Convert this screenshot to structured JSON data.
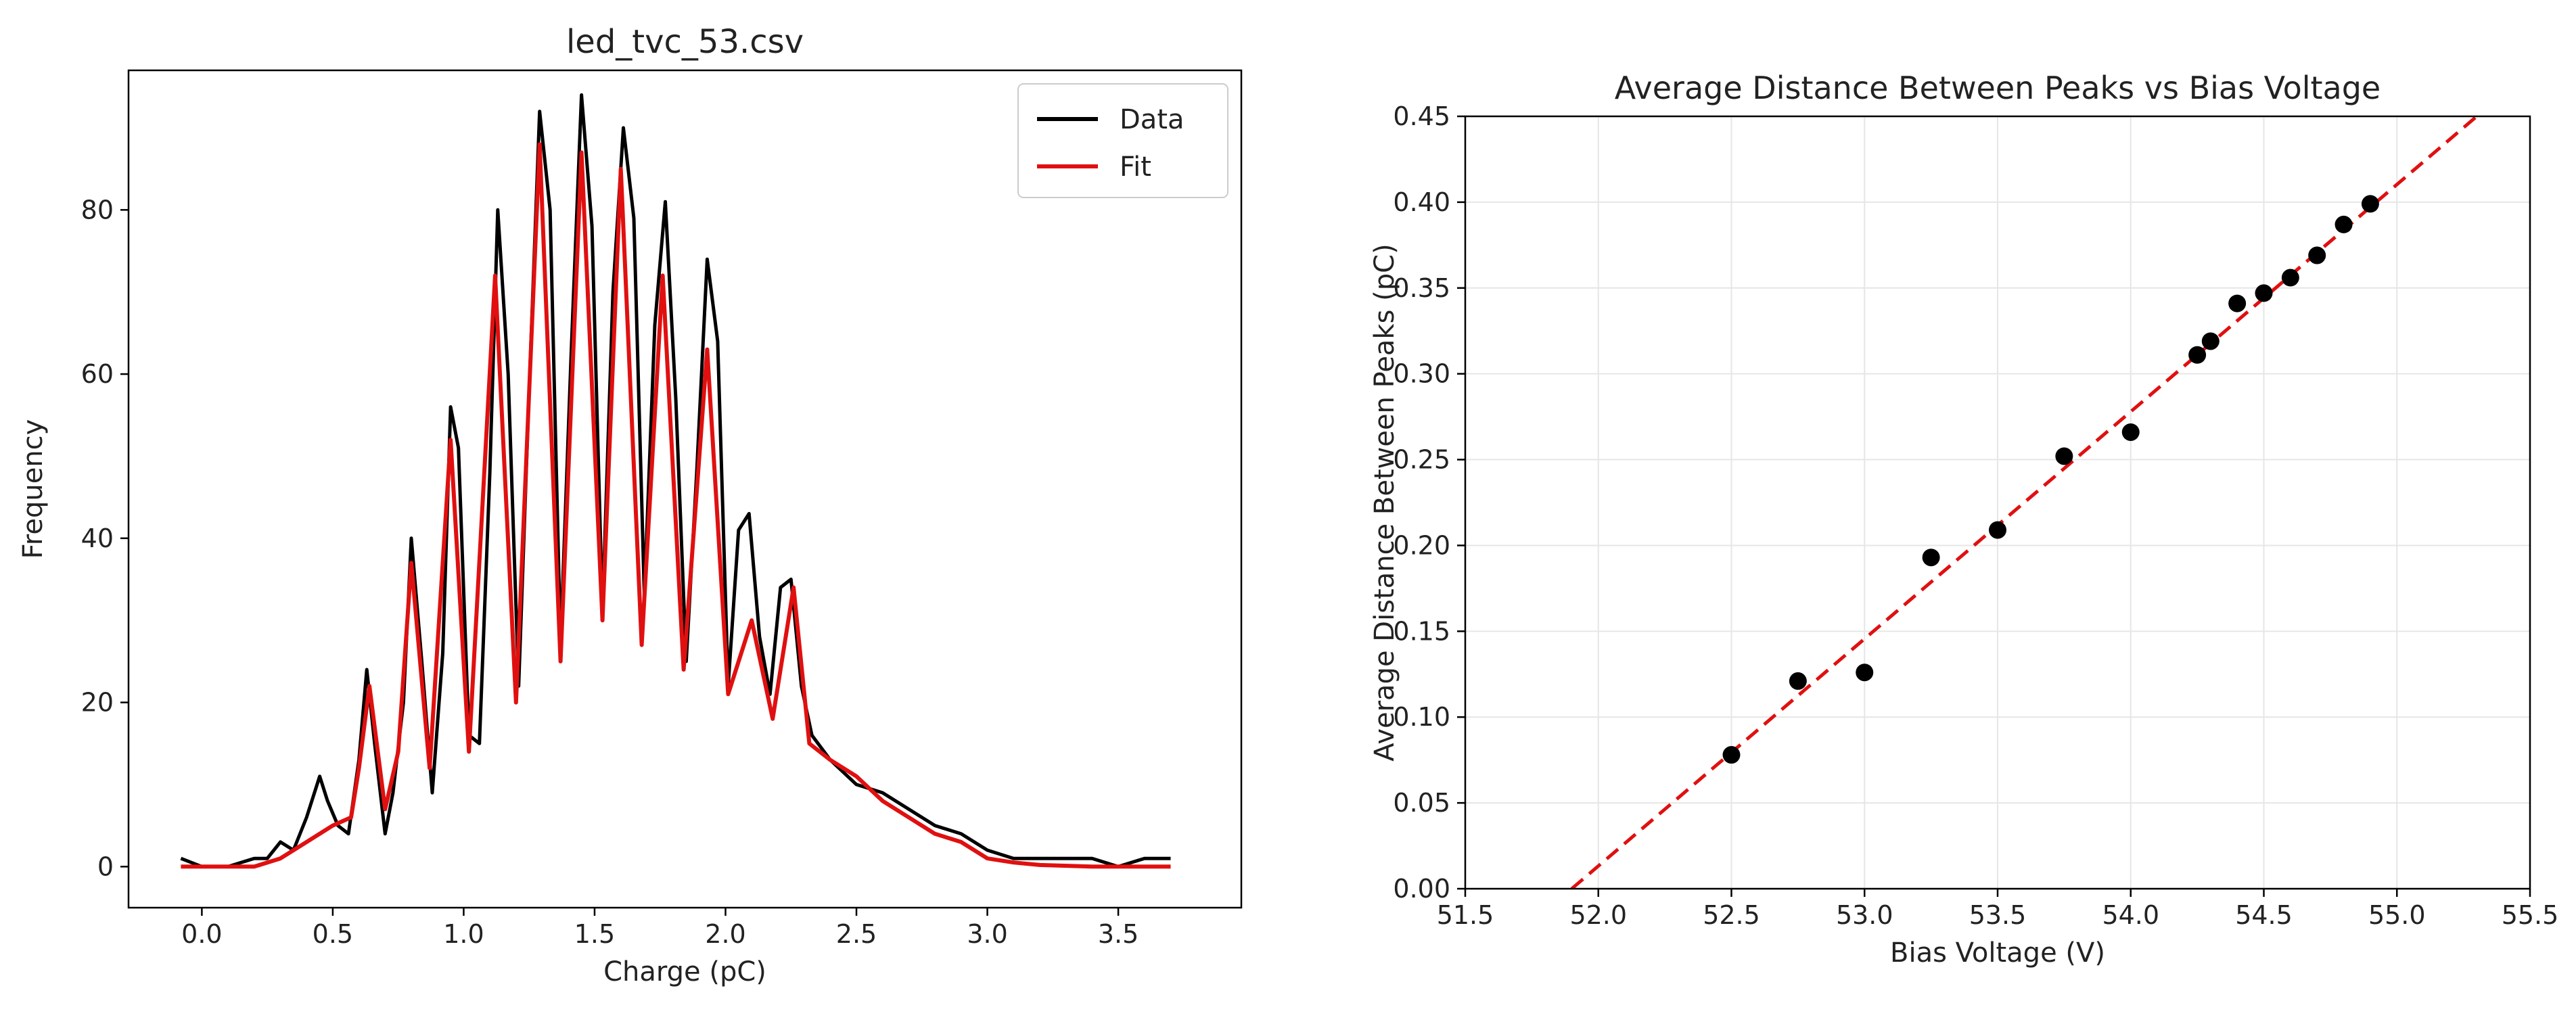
{
  "chart_data": [
    {
      "type": "line",
      "title": "led_tvc_53.csv",
      "xlabel": "Charge (pC)",
      "ylabel": "Frequency",
      "xlim": [
        -0.28,
        3.97
      ],
      "ylim": [
        -5,
        97
      ],
      "xticks": [
        0.0,
        0.5,
        1.0,
        1.5,
        2.0,
        2.5,
        3.0,
        3.5
      ],
      "xtick_labels": [
        "0.0",
        "0.5",
        "1.0",
        "1.5",
        "2.0",
        "2.5",
        "3.0",
        "3.5"
      ],
      "yticks": [
        0,
        20,
        40,
        60,
        80
      ],
      "ytick_labels": [
        "0",
        "20",
        "40",
        "60",
        "80"
      ],
      "grid": false,
      "legend": {
        "placement": "top-right",
        "entries": [
          {
            "label": "Data",
            "color": "#000000"
          },
          {
            "label": "Fit",
            "color": "#e01010"
          }
        ]
      },
      "series": [
        {
          "name": "Data",
          "color": "#000000",
          "x": [
            -0.08,
            0.0,
            0.1,
            0.2,
            0.25,
            0.3,
            0.35,
            0.4,
            0.45,
            0.48,
            0.52,
            0.56,
            0.6,
            0.63,
            0.66,
            0.7,
            0.73,
            0.77,
            0.8,
            0.84,
            0.88,
            0.92,
            0.95,
            0.98,
            1.02,
            1.06,
            1.1,
            1.13,
            1.17,
            1.21,
            1.25,
            1.29,
            1.33,
            1.37,
            1.41,
            1.45,
            1.49,
            1.53,
            1.57,
            1.61,
            1.65,
            1.69,
            1.73,
            1.77,
            1.81,
            1.85,
            1.89,
            1.93,
            1.97,
            2.01,
            2.05,
            2.09,
            2.13,
            2.17,
            2.21,
            2.25,
            2.29,
            2.33,
            2.4,
            2.5,
            2.6,
            2.7,
            2.8,
            2.9,
            3.0,
            3.1,
            3.2,
            3.3,
            3.4,
            3.5,
            3.6,
            3.7
          ],
          "y": [
            1,
            0,
            0,
            1,
            1,
            3,
            2,
            6,
            11,
            8,
            5,
            4,
            13,
            24,
            15,
            4,
            9,
            20,
            40,
            25,
            9,
            26,
            56,
            51,
            16,
            15,
            48,
            80,
            60,
            22,
            58,
            92,
            80,
            27,
            62,
            94,
            78,
            31,
            70,
            90,
            79,
            33,
            66,
            81,
            57,
            25,
            48,
            74,
            64,
            22,
            41,
            43,
            28,
            21,
            34,
            35,
            22,
            16,
            13,
            10,
            9,
            7,
            5,
            4,
            2,
            1,
            1,
            1,
            1,
            0,
            1,
            1
          ]
        },
        {
          "name": "Fit",
          "color": "#e01010",
          "x": [
            -0.08,
            0.1,
            0.2,
            0.3,
            0.4,
            0.5,
            0.57,
            0.6,
            0.64,
            0.7,
            0.75,
            0.8,
            0.87,
            0.95,
            1.02,
            1.12,
            1.2,
            1.29,
            1.37,
            1.45,
            1.53,
            1.6,
            1.68,
            1.76,
            1.84,
            1.93,
            2.01,
            2.1,
            2.18,
            2.26,
            2.32,
            2.4,
            2.5,
            2.6,
            2.7,
            2.8,
            2.9,
            3.0,
            3.1,
            3.2,
            3.4,
            3.7
          ],
          "y": [
            0,
            0,
            0,
            1,
            3,
            5,
            6,
            12,
            22,
            7,
            14,
            37,
            12,
            52,
            14,
            72,
            20,
            88,
            25,
            87,
            30,
            85,
            27,
            72,
            24,
            63,
            21,
            30,
            18,
            34,
            15,
            13,
            11,
            8,
            6,
            4,
            3,
            1,
            0.5,
            0.2,
            0,
            0
          ]
        }
      ]
    },
    {
      "type": "scatter",
      "title": "Average Distance Between Peaks vs Bias Voltage",
      "xlabel": "Bias Voltage (V)",
      "ylabel": "Average Distance Between Peaks (pC)",
      "xlim": [
        51.5,
        55.5
      ],
      "ylim": [
        0.0,
        0.45
      ],
      "xticks": [
        51.5,
        52.0,
        52.5,
        53.0,
        53.5,
        54.0,
        54.5,
        55.0,
        55.5
      ],
      "xtick_labels": [
        "51.5",
        "52.0",
        "52.5",
        "53.0",
        "53.5",
        "54.0",
        "54.5",
        "55.0",
        "55.5"
      ],
      "yticks": [
        0.0,
        0.05,
        0.1,
        0.15,
        0.2,
        0.25,
        0.3,
        0.35,
        0.4,
        0.45
      ],
      "ytick_labels": [
        "0.00",
        "0.05",
        "0.10",
        "0.15",
        "0.20",
        "0.25",
        "0.30",
        "0.35",
        "0.40",
        "0.45"
      ],
      "grid": true,
      "points": {
        "color": "#000000",
        "x": [
          52.5,
          52.75,
          53.0,
          53.25,
          53.5,
          53.75,
          54.0,
          54.25,
          54.3,
          54.4,
          54.5,
          54.6,
          54.7,
          54.8,
          54.9
        ],
        "y": [
          0.078,
          0.121,
          0.126,
          0.193,
          0.209,
          0.252,
          0.266,
          0.311,
          0.319,
          0.341,
          0.347,
          0.356,
          0.369,
          0.387,
          0.399
        ]
      },
      "fit_line": {
        "color": "#e01010",
        "style": "dashed",
        "x": [
          51.9,
          55.3
        ],
        "y": [
          0.0,
          0.45
        ]
      }
    }
  ]
}
